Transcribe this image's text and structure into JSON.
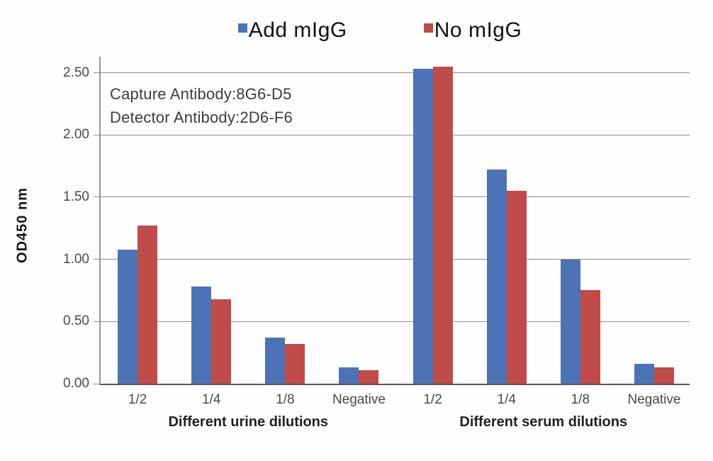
{
  "legend": [
    {
      "label": "Add mIgG",
      "color": "#4d73b7"
    },
    {
      "label": "No mIgG",
      "color": "#c04b48"
    }
  ],
  "annotation": {
    "line1": "Capture Antibody:8G6-D5",
    "line2": "Detector Antibody:2D6-F6"
  },
  "chart_data": {
    "type": "bar",
    "title": "",
    "ylabel": "OD450 nm",
    "xlabel": "",
    "ylim": [
      0,
      2.64
    ],
    "yticks": [
      0,
      0.5,
      1.0,
      1.5,
      2.0,
      2.5
    ],
    "ytick_labels": [
      "0.00",
      "0.50",
      "1.00",
      "1.50",
      "2.00",
      "2.50"
    ],
    "grid": true,
    "legend_position": "top",
    "categories": [
      "1/2",
      "1/4",
      "1/8",
      "Negative",
      "1/2",
      "1/4",
      "1/8",
      "Negative"
    ],
    "groups": [
      {
        "label": "Different urine dilutions",
        "category_indexes": [
          0,
          1,
          2,
          3
        ]
      },
      {
        "label": "Different serum dilutions",
        "category_indexes": [
          4,
          5,
          6,
          7
        ]
      }
    ],
    "series": [
      {
        "name": "Add mIgG",
        "color": "#4d73b7",
        "values": [
          1.08,
          0.78,
          0.37,
          0.13,
          2.53,
          1.72,
          1.0,
          0.16
        ]
      },
      {
        "name": "No mIgG",
        "color": "#c04b48",
        "values": [
          1.27,
          0.68,
          0.32,
          0.11,
          2.55,
          1.55,
          0.75,
          0.13
        ]
      }
    ]
  }
}
